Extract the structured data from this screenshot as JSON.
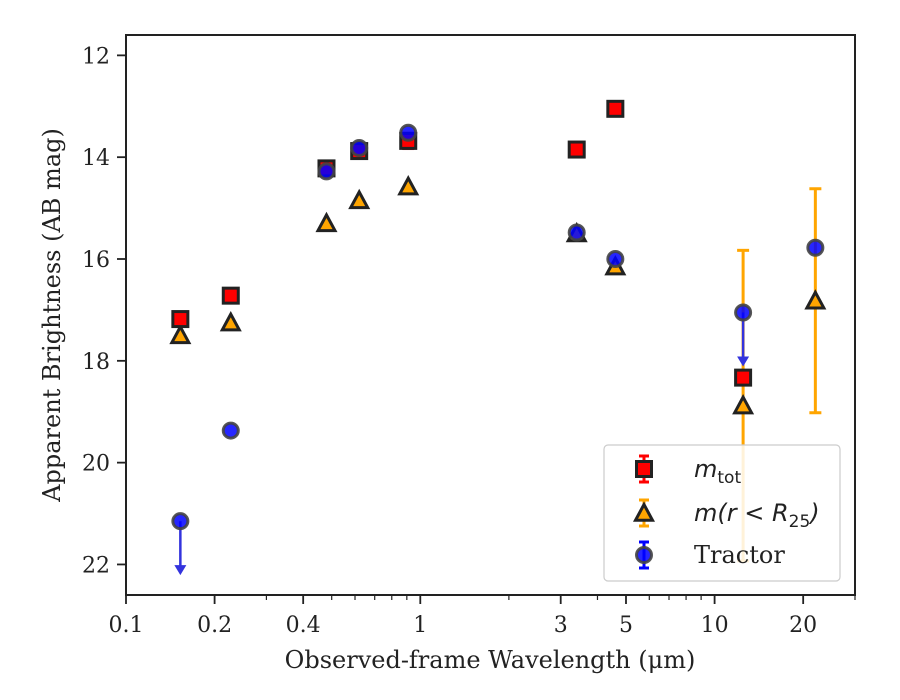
{
  "chart_data": {
    "type": "scatter",
    "title": "",
    "xlabel": "Observed-frame Wavelength (μm)",
    "ylabel": "Apparent Brightness (AB mag)",
    "xscale": "log",
    "xlim": [
      0.1,
      30
    ],
    "ylim": [
      22.6,
      11.6
    ],
    "y_inverted": true,
    "x_ticks": [
      0.1,
      0.2,
      0.4,
      1,
      3,
      5,
      10,
      20
    ],
    "x_tick_labels": [
      "0.1",
      "0.2",
      "0.4",
      "1",
      "3",
      "5",
      "10",
      "20"
    ],
    "y_ticks": [
      12,
      14,
      16,
      18,
      20,
      22
    ],
    "y_tick_labels": [
      "12",
      "14",
      "16",
      "18",
      "20",
      "22"
    ],
    "grid": false,
    "legend_position": "bottom-right",
    "series": [
      {
        "name": "m_tot",
        "legend": {
          "main": "m",
          "sub": "tot"
        },
        "marker": "square",
        "color": "#ff0000",
        "edge": "#222222",
        "points": [
          {
            "x": 0.153,
            "y": 17.18
          },
          {
            "x": 0.227,
            "y": 16.72
          },
          {
            "x": 0.48,
            "y": 14.22
          },
          {
            "x": 0.62,
            "y": 13.88
          },
          {
            "x": 0.91,
            "y": 13.68,
            "err": 0.15
          },
          {
            "x": 3.4,
            "y": 13.85
          },
          {
            "x": 4.6,
            "y": 13.05
          },
          {
            "x": 12.5,
            "y": 18.33
          }
        ]
      },
      {
        "name": "m(r < R_25)",
        "legend": {
          "main": "m(r < R",
          "sub": "25",
          "tail": ")"
        },
        "marker": "triangle",
        "color": "#ffa500",
        "edge": "#222222",
        "points": [
          {
            "x": 0.153,
            "y": 17.5
          },
          {
            "x": 0.227,
            "y": 17.25
          },
          {
            "x": 0.48,
            "y": 15.3
          },
          {
            "x": 0.62,
            "y": 14.85
          },
          {
            "x": 0.91,
            "y": 14.58
          },
          {
            "x": 3.4,
            "y": 15.5
          },
          {
            "x": 4.6,
            "y": 16.15
          },
          {
            "x": 12.5,
            "y": 18.88,
            "err": 3.05
          },
          {
            "x": 22.0,
            "y": 16.82,
            "err": 2.2
          }
        ]
      },
      {
        "name": "Tractor",
        "legend": {
          "main": "Tractor"
        },
        "marker": "circle",
        "color": "#0000ff",
        "edge": "#444444",
        "points": [
          {
            "x": 0.153,
            "y": 21.15,
            "upper_limit": true
          },
          {
            "x": 0.227,
            "y": 19.37
          },
          {
            "x": 0.48,
            "y": 14.28
          },
          {
            "x": 0.62,
            "y": 13.82
          },
          {
            "x": 0.91,
            "y": 13.52
          },
          {
            "x": 3.4,
            "y": 15.48
          },
          {
            "x": 4.6,
            "y": 16.0
          },
          {
            "x": 12.5,
            "y": 17.05,
            "upper_limit": true
          },
          {
            "x": 22.0,
            "y": 15.78
          }
        ]
      }
    ]
  }
}
